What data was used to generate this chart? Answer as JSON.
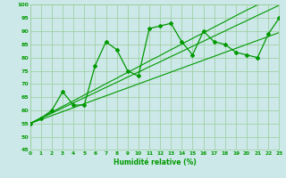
{
  "xlabel": "Humidité relative (%)",
  "background_color": "#cce8e8",
  "grid_color": "#99cc99",
  "line_color": "#009900",
  "x_data": [
    0,
    1,
    2,
    3,
    4,
    5,
    6,
    7,
    8,
    9,
    10,
    11,
    12,
    13,
    14,
    15,
    16,
    17,
    18,
    19,
    20,
    21,
    22,
    23
  ],
  "y_main": [
    55,
    57,
    60,
    67,
    62,
    62,
    77,
    86,
    83,
    75,
    73,
    91,
    92,
    93,
    86,
    81,
    90,
    86,
    85,
    82,
    81,
    80,
    89,
    95
  ],
  "y_line1": [
    55,
    57.2,
    59.3,
    61.5,
    63.6,
    65.8,
    67.9,
    70.1,
    72.2,
    74.4,
    76.5,
    78.7,
    80.8,
    83.0,
    85.1,
    87.3,
    89.4,
    91.6,
    93.7,
    95.9,
    98.0,
    100.0,
    102.0,
    104.0
  ],
  "y_line2": [
    55,
    57.0,
    58.9,
    60.9,
    62.8,
    64.8,
    66.7,
    68.7,
    70.6,
    72.6,
    74.5,
    76.5,
    78.4,
    80.4,
    82.3,
    84.3,
    86.2,
    88.2,
    90.1,
    92.1,
    94.0,
    96.0,
    97.9,
    99.9
  ],
  "y_line3": [
    55,
    56.5,
    58.0,
    59.5,
    61.0,
    62.5,
    64.0,
    65.5,
    67.0,
    68.5,
    70.0,
    71.5,
    73.0,
    74.5,
    76.0,
    77.5,
    79.0,
    80.5,
    82.0,
    83.5,
    85.0,
    86.5,
    88.0,
    89.5
  ],
  "ylim": [
    45,
    100
  ],
  "yticks": [
    45,
    50,
    55,
    60,
    65,
    70,
    75,
    80,
    85,
    90,
    95,
    100
  ],
  "xlim": [
    0,
    23
  ],
  "xtick_labels": [
    "0",
    "1",
    "2",
    "3",
    "4",
    "5",
    "6",
    "7",
    "8",
    "9",
    "10",
    "11",
    "12",
    "13",
    "14",
    "15",
    "16",
    "17",
    "18",
    "19",
    "20",
    "21",
    "22",
    "23"
  ]
}
